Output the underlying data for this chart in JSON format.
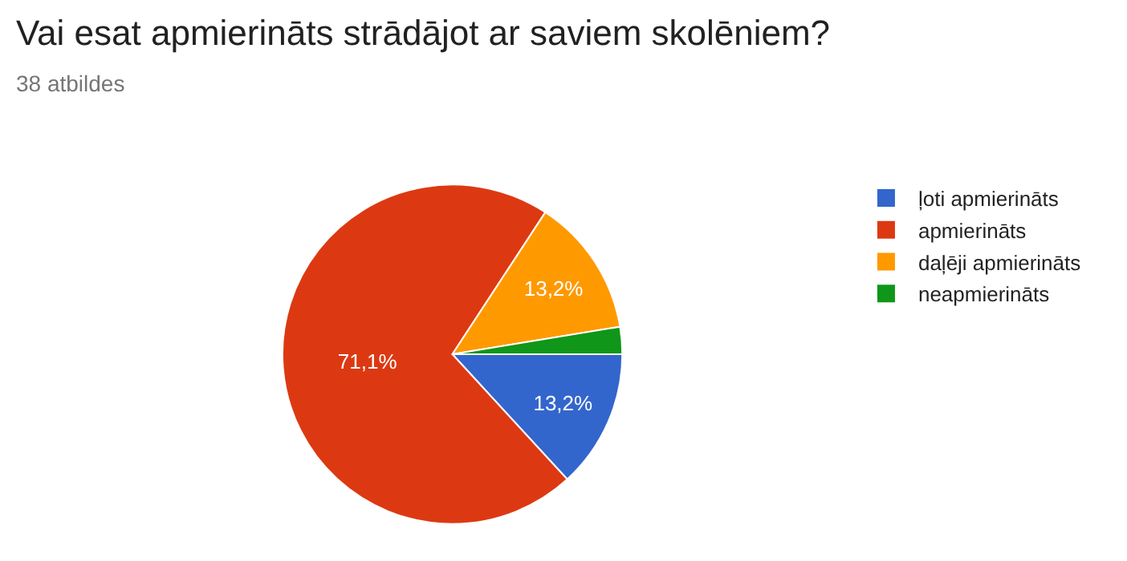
{
  "chart_data": {
    "type": "pie",
    "title": "Vai esat apmierināts strādājot ar saviem skolēniem?",
    "subtitle": "38 atbildes",
    "categories": [
      "ļoti apmierināts",
      "apmierināts",
      "daļēji apmierināts",
      "neapmierināts"
    ],
    "values": [
      13.2,
      71.1,
      13.2,
      2.6
    ],
    "colors": [
      "#3366cc",
      "#dc3912",
      "#ff9900",
      "#109618"
    ],
    "value_labels": [
      "13,2%",
      "71,1%",
      "13,2%",
      null
    ],
    "legend": "right"
  }
}
